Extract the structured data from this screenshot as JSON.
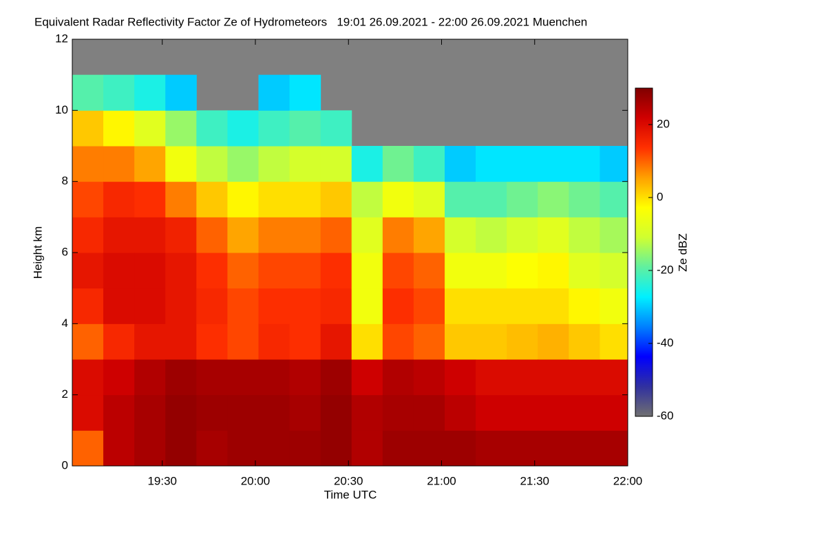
{
  "chart_data": {
    "type": "heatmap",
    "title": "Equivalent Radar Reflectivity Factor Ze of Hydrometeors   19:01 26.09.2021 - 22:00 26.09.2021 Muenchen",
    "xlabel": "Time UTC",
    "ylabel": "Height km",
    "colorbar_label": "Ze dBZ",
    "xlim": [
      1141,
      1320
    ],
    "xticks": [
      {
        "value": 1170,
        "label": "19:30"
      },
      {
        "value": 1200,
        "label": "20:00"
      },
      {
        "value": 1230,
        "label": "20:30"
      },
      {
        "value": 1260,
        "label": "21:00"
      },
      {
        "value": 1290,
        "label": "21:30"
      },
      {
        "value": 1320,
        "label": "22:00"
      }
    ],
    "ylim": [
      0,
      12
    ],
    "yticks": [
      0,
      2,
      4,
      6,
      8,
      10,
      12
    ],
    "zlim": [
      -60,
      30
    ],
    "zticks": [
      -60,
      -40,
      -20,
      0,
      20
    ],
    "x": [
      1146,
      1156,
      1166,
      1176,
      1186,
      1196,
      1206,
      1216,
      1226,
      1236,
      1246,
      1256,
      1266,
      1276,
      1286,
      1296,
      1306,
      1316
    ],
    "y": [
      0.5,
      1.5,
      2.5,
      3.5,
      4.5,
      5.5,
      6.5,
      7.5,
      8.5,
      9.5,
      10.5,
      11.5
    ],
    "z": [
      [
        10,
        20,
        20,
        10,
        15,
        18,
        15,
        12,
        8,
        2,
        -20,
        null
      ],
      [
        24,
        24,
        22,
        15,
        20,
        20,
        18,
        15,
        8,
        -2,
        -22,
        null
      ],
      [
        26,
        26,
        25,
        18,
        20,
        20,
        18,
        14,
        5,
        -8,
        -25,
        null
      ],
      [
        28,
        28,
        27,
        18,
        18,
        18,
        16,
        8,
        -5,
        -15,
        -30,
        null
      ],
      [
        26,
        27,
        26,
        14,
        15,
        14,
        10,
        2,
        -12,
        -22,
        null,
        null
      ],
      [
        27,
        27,
        26,
        12,
        12,
        10,
        5,
        -2,
        -15,
        -25,
        null,
        null
      ],
      [
        27,
        27,
        26,
        15,
        14,
        12,
        8,
        0,
        -12,
        -22,
        -30,
        null
      ],
      [
        27,
        26,
        25,
        14,
        14,
        12,
        8,
        0,
        -10,
        -20,
        -28,
        null
      ],
      [
        28,
        28,
        27,
        18,
        15,
        14,
        10,
        2,
        -10,
        -22,
        null,
        null
      ],
      [
        25,
        25,
        22,
        0,
        -5,
        -5,
        -8,
        -12,
        -25,
        null,
        null,
        null
      ],
      [
        27,
        26,
        25,
        12,
        14,
        12,
        8,
        -5,
        -18,
        null,
        null,
        null
      ],
      [
        27,
        26,
        24,
        10,
        12,
        10,
        5,
        -8,
        -22,
        null,
        null,
        null
      ],
      [
        27,
        24,
        22,
        2,
        0,
        -5,
        -10,
        -20,
        -30,
        null,
        null,
        null
      ],
      [
        26,
        22,
        20,
        2,
        0,
        -5,
        -12,
        -20,
        -28,
        null,
        null,
        null
      ],
      [
        26,
        22,
        20,
        3,
        0,
        -3,
        -10,
        -18,
        -28,
        null,
        null,
        null
      ],
      [
        26,
        22,
        20,
        4,
        0,
        -2,
        -8,
        -16,
        -28,
        null,
        null,
        null
      ],
      [
        26,
        22,
        20,
        2,
        -2,
        -8,
        -12,
        -18,
        -28,
        null,
        null,
        null
      ],
      [
        26,
        22,
        20,
        0,
        -5,
        -10,
        -14,
        -20,
        -30,
        null,
        null,
        null
      ]
    ],
    "colormap": [
      "#707070",
      "#3030a0",
      "#0000ff",
      "#0080ff",
      "#00f0ff",
      "#60f0a0",
      "#d0ff30",
      "#ffff00",
      "#ffa000",
      "#ff3000",
      "#d00000",
      "#800000"
    ],
    "nodata_color": "#808080"
  }
}
